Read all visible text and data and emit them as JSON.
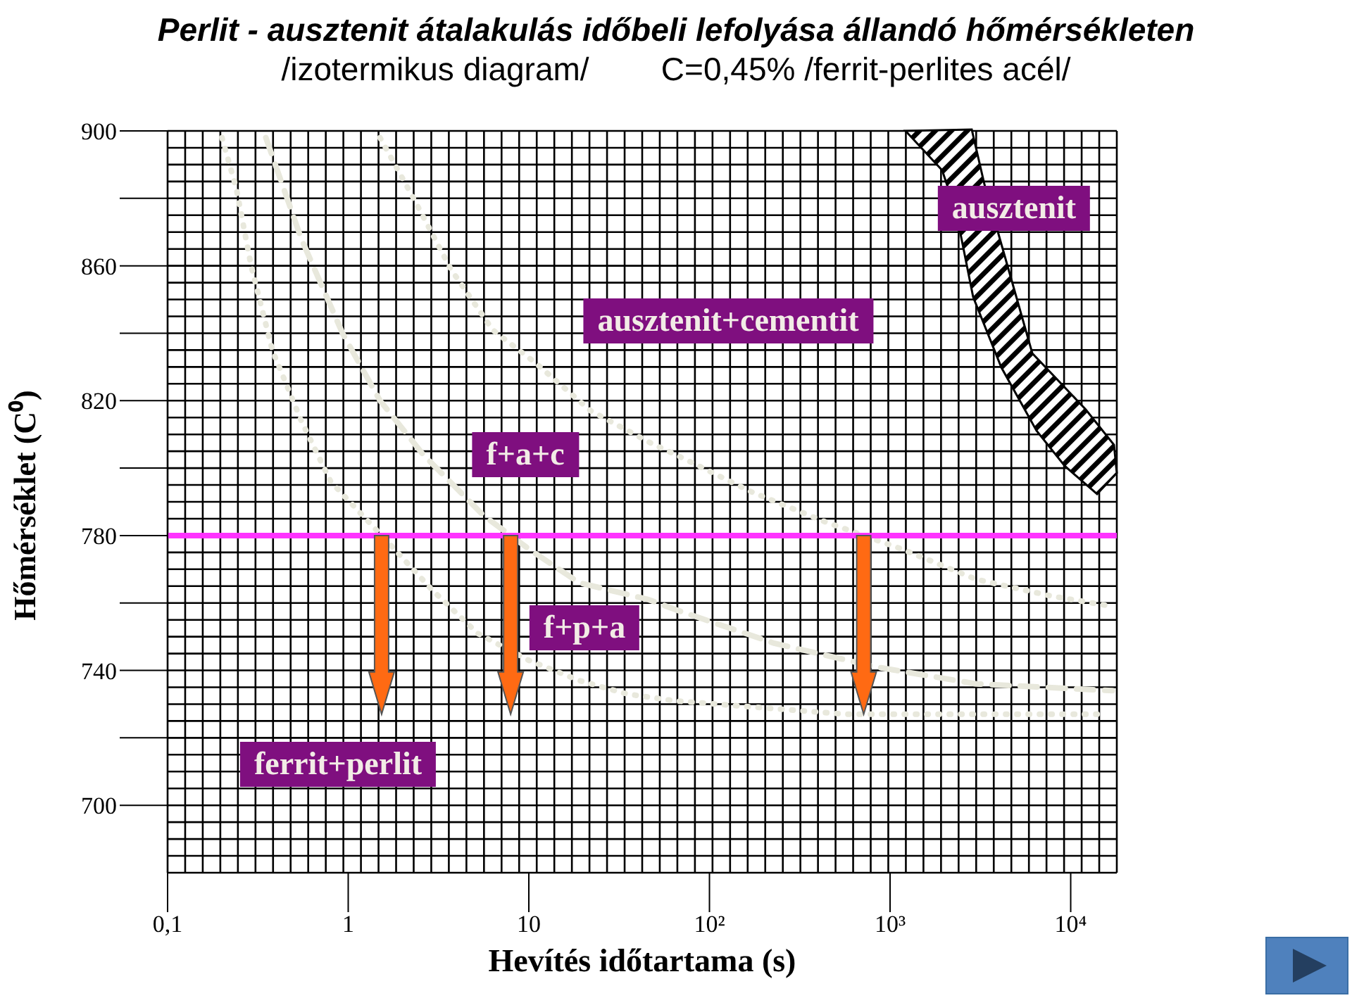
{
  "chart_data": {
    "type": "line",
    "title": "Perlit - ausztenit átalakulás időbeli lefolyása állandó hőmérsékleten",
    "subtitle": "/izotermikus diagram/        C=0,45% /ferrit-perlites acél/",
    "xlabel": "Hevítés időtartama (s)",
    "ylabel": "Hőmérséklet (C⁰)",
    "log": "x",
    "grid": true,
    "xlim": [
      0.1,
      18000
    ],
    "xticks": [
      {
        "value": 0.1,
        "label": "0,1"
      },
      1,
      10,
      {
        "value": 100,
        "label": "10²"
      },
      {
        "value": 1000,
        "label": "10³"
      },
      {
        "value": 10000,
        "label": "10⁴"
      }
    ],
    "ylim": [
      680,
      900
    ],
    "yticks": [
      900,
      {
        "value": 880,
        "label": null
      },
      860,
      {
        "value": 840,
        "label": null
      },
      820,
      {
        "value": 800,
        "label": null
      },
      780,
      {
        "value": 760,
        "label": null
      },
      740,
      {
        "value": 720,
        "label": null
      },
      700
    ],
    "series": [
      {
        "color": "#e8e8dc",
        "line_style": "dotted",
        "x": [
          0.2,
          0.24,
          0.29,
          0.38,
          0.55,
          0.8,
          1.2,
          1.8,
          2.9,
          5.2,
          10,
          19,
          35,
          64,
          570,
          15000
        ],
        "values": [
          898,
          883,
          860,
          835,
          814,
          796,
          786,
          776,
          764,
          751,
          743,
          737,
          733,
          731,
          727,
          727
        ]
      },
      {
        "color": "#e8e8dc",
        "line_style": "dashed",
        "x": [
          0.35,
          0.55,
          0.93,
          1.5,
          2.6,
          5.6,
          10,
          19,
          46,
          65,
          230,
          840,
          3000,
          17000
        ],
        "values": [
          898,
          868,
          840,
          820,
          804,
          786,
          776,
          766,
          761,
          758,
          748,
          741,
          736,
          734
        ]
      },
      {
        "color": "#e8e8dc",
        "line_style": "dotted",
        "x": [
          1.5,
          2.3,
          3.7,
          6.3,
          11,
          22,
          49,
          65,
          170,
          440,
          1160,
          3000,
          7900,
          17000
        ],
        "values": [
          898,
          880,
          859,
          841,
          831,
          817,
          807,
          804,
          793,
          784,
          776,
          767,
          762,
          759
        ]
      }
    ],
    "ref_lines": [
      {
        "axis": "y",
        "value": 780,
        "color": "#ff33ff"
      }
    ],
    "annotations": [
      "ausztenit",
      "ausztenit+cementit",
      "f+a+c",
      "f+p+a",
      "ferrit+perlit"
    ]
  }
}
